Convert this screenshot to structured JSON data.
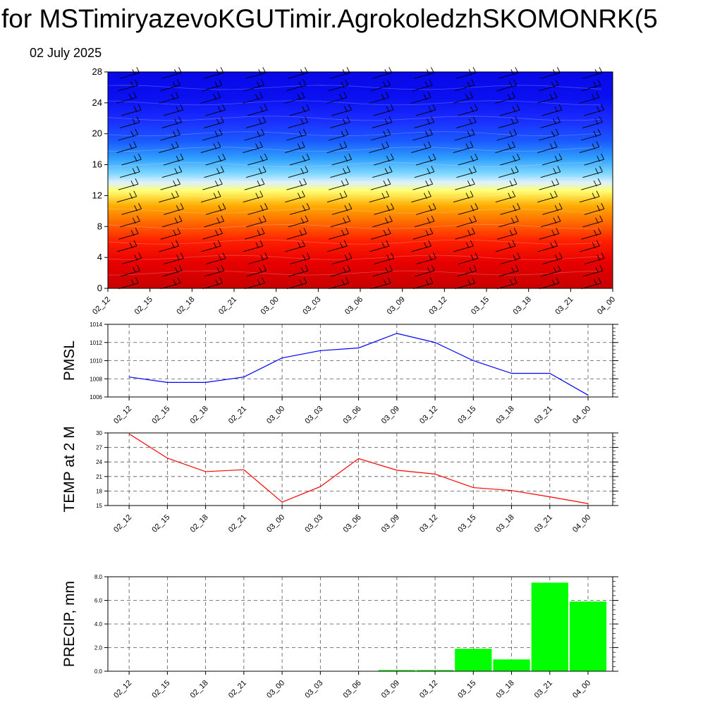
{
  "header": {
    "title": "for MSTimiryazevoKGUTimir.AgrokoledzhSKOMONRK(5",
    "date": "02 July 2025"
  },
  "chart_data": [
    {
      "type": "heatmap",
      "categories": [
        "02_12",
        "02_15",
        "02_18",
        "02_21",
        "03_00",
        "03_03",
        "03_06",
        "03_09",
        "03_12",
        "03_15",
        "03_18",
        "03_21",
        "04_00"
      ],
      "yticks": [
        0,
        4,
        8,
        12,
        16,
        20,
        24,
        28
      ],
      "ylim": [
        0,
        28
      ],
      "rows_low_to_high": [
        "red",
        "red-orange",
        "orange",
        "yellow",
        "light-blue",
        "blue",
        "deep-blue"
      ],
      "colors": {
        "low": "#cc0000",
        "mid": "#ffff66",
        "high": "#1a1aff"
      },
      "overlay": "wind barbs"
    },
    {
      "type": "line",
      "ylabel": "PMSL",
      "categories": [
        "02_12",
        "02_15",
        "02_18",
        "02_21",
        "03_00",
        "03_03",
        "03_06",
        "03_09",
        "03_12",
        "03_15",
        "03_18",
        "03_21",
        "04_00"
      ],
      "values": [
        1008.2,
        1007.6,
        1007.6,
        1008.2,
        1010.3,
        1011.1,
        1011.4,
        1013.0,
        1012.0,
        1010.0,
        1008.6,
        1008.6,
        1006.2
      ],
      "yticks": [
        "1006",
        "1008",
        "1010",
        "1012",
        "1014"
      ],
      "ylim": [
        1006,
        1014
      ],
      "color": "#0000ff"
    },
    {
      "type": "line",
      "ylabel": "TEMP at 2 M",
      "categories": [
        "02_12",
        "02_15",
        "02_18",
        "02_21",
        "03_00",
        "03_03",
        "03_06",
        "03_09",
        "03_12",
        "03_15",
        "03_18",
        "03_21",
        "04_00"
      ],
      "values": [
        29.8,
        24.8,
        22.0,
        22.4,
        15.7,
        18.9,
        24.7,
        22.3,
        21.5,
        18.7,
        18.1,
        16.8,
        15.4
      ],
      "yticks": [
        "15",
        "18",
        "21",
        "24",
        "27",
        "30"
      ],
      "ylim": [
        15,
        30
      ],
      "color": "#ff0000"
    },
    {
      "type": "bar",
      "ylabel": "PRECIP, mm",
      "categories": [
        "02_12",
        "02_15",
        "02_18",
        "02_21",
        "03_00",
        "03_03",
        "03_06",
        "03_09",
        "03_12",
        "03_15",
        "03_18",
        "03_21",
        "04_00"
      ],
      "values": [
        0,
        0,
        0,
        0,
        0,
        0,
        0,
        0.1,
        0.1,
        1.9,
        1.0,
        7.5,
        5.9
      ],
      "yticks": [
        "0.0",
        "2.0",
        "4.0",
        "6.0",
        "8.0"
      ],
      "ylim": [
        0,
        8
      ],
      "color": "#00ff00"
    }
  ]
}
